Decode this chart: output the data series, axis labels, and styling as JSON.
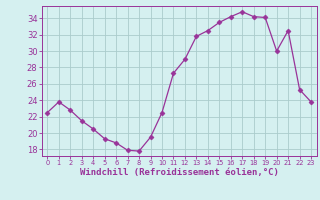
{
  "x": [
    0,
    1,
    2,
    3,
    4,
    5,
    6,
    7,
    8,
    9,
    10,
    11,
    12,
    13,
    14,
    15,
    16,
    17,
    18,
    19,
    20,
    21,
    22,
    23
  ],
  "y": [
    22.5,
    23.8,
    22.8,
    21.5,
    20.5,
    19.3,
    18.8,
    17.9,
    17.8,
    19.5,
    22.5,
    27.3,
    29.0,
    31.8,
    32.5,
    33.5,
    34.2,
    34.8,
    34.2,
    34.1,
    30.0,
    32.5,
    25.3,
    23.8
  ],
  "line_color": "#993399",
  "marker": "D",
  "marker_size": 2.5,
  "bg_color": "#d5f0f0",
  "grid_color": "#aacccc",
  "xlabel": "Windchill (Refroidissement éolien,°C)",
  "xlabel_color": "#993399",
  "ylabel_ticks": [
    18,
    20,
    22,
    24,
    26,
    28,
    30,
    32,
    34
  ],
  "xtick_labels": [
    "0",
    "1",
    "2",
    "3",
    "4",
    "5",
    "6",
    "7",
    "8",
    "9",
    "10",
    "11",
    "12",
    "13",
    "14",
    "15",
    "16",
    "17",
    "18",
    "19",
    "20",
    "21",
    "22",
    "23"
  ],
  "ylim": [
    17.2,
    35.5
  ],
  "xlim": [
    -0.5,
    23.5
  ],
  "tick_color": "#993399",
  "axis_color": "#993399",
  "ytick_fontsize": 6,
  "xtick_fontsize": 4.8,
  "xlabel_fontsize": 6.5
}
